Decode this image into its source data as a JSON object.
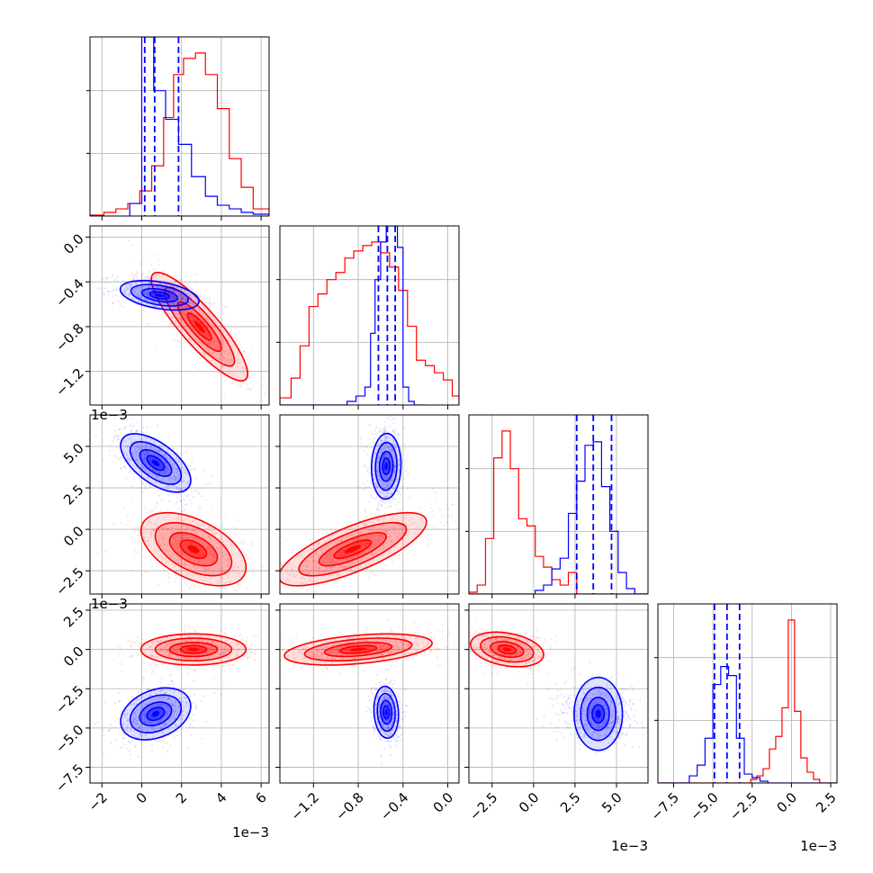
{
  "chart_data": {
    "type": "corner",
    "grid": true,
    "axis_offset_label": "1e−3",
    "series": [
      {
        "name": "",
        "color": "#ff0000"
      },
      {
        "name": "",
        "color": "#0000ff"
      }
    ],
    "parameters": [
      {
        "range": [
          -2.6,
          6.4
        ],
        "ticks": [
          -2,
          0,
          2,
          4,
          6
        ],
        "tick_labels": [
          "−2",
          "0",
          "2",
          "4",
          "6"
        ]
      },
      {
        "range": [
          -1.5,
          0.1
        ],
        "ticks": [
          -1.2,
          -0.8,
          -0.4,
          0.0
        ],
        "tick_labels": [
          "−1.2",
          "−0.8",
          "−0.4",
          "0.0"
        ]
      },
      {
        "range": [
          -3.9,
          6.9
        ],
        "ticks": [
          -2.5,
          0.0,
          2.5,
          5.0
        ],
        "tick_labels": [
          "−2.5",
          "0.0",
          "2.5",
          "5.0"
        ]
      },
      {
        "range": [
          -8.5,
          2.9
        ],
        "ticks": [
          -7.5,
          -5.0,
          -2.5,
          0.0,
          2.5
        ],
        "tick_labels": [
          "−7.5",
          "−5.0",
          "−2.5",
          "0.0",
          "2.5"
        ]
      }
    ],
    "diagonal_histograms": [
      {
        "blue_quantiles": [
          0.15,
          0.65,
          1.85
        ],
        "blue_edges": [
          -0.6,
          0.0,
          0.6,
          1.2,
          1.85,
          2.5,
          3.2,
          3.8,
          4.4,
          5.0,
          5.6,
          6.4
        ],
        "blue_counts": [
          0.07,
          1.0,
          0.7,
          0.54,
          0.4,
          0.22,
          0.11,
          0.06,
          0.04,
          0.02,
          0.01
        ],
        "red_edges": [
          -2.6,
          -1.9,
          -1.3,
          -0.7,
          -0.1,
          0.5,
          1.1,
          1.6,
          2.1,
          2.7,
          3.2,
          3.8,
          4.4,
          5.0,
          5.6,
          6.4
        ],
        "red_counts": [
          0.005,
          0.02,
          0.04,
          0.07,
          0.14,
          0.28,
          0.55,
          0.79,
          0.88,
          0.91,
          0.79,
          0.6,
          0.32,
          0.16,
          0.04
        ]
      },
      {
        "blue_quantiles": [
          -0.62,
          -0.54,
          -0.47
        ],
        "blue_edges": [
          -1.5,
          -0.9,
          -0.82,
          -0.74,
          -0.69,
          -0.65,
          -0.6,
          -0.55,
          -0.5,
          -0.45,
          -0.4,
          -0.35,
          -0.3,
          -0.2
        ],
        "blue_counts": [
          0.0,
          0.02,
          0.05,
          0.1,
          0.4,
          0.7,
          0.91,
          1.0,
          1.0,
          0.88,
          0.1,
          0.02,
          0.0
        ],
        "red_edges": [
          -1.5,
          -1.4,
          -1.32,
          -1.24,
          -1.16,
          -1.08,
          -1.0,
          -0.92,
          -0.84,
          -0.76,
          -0.68,
          -0.6,
          -0.52,
          -0.44,
          -0.36,
          -0.28,
          -0.2,
          -0.12,
          -0.04,
          0.04,
          0.1
        ],
        "red_counts": [
          0.04,
          0.15,
          0.33,
          0.55,
          0.62,
          0.7,
          0.74,
          0.82,
          0.86,
          0.89,
          0.91,
          0.85,
          0.77,
          0.64,
          0.44,
          0.25,
          0.22,
          0.18,
          0.14,
          0.05
        ]
      },
      {
        "blue_quantiles": [
          2.6,
          3.6,
          4.7
        ],
        "blue_edges": [
          -3.9,
          0.1,
          0.6,
          1.1,
          1.6,
          2.1,
          2.6,
          3.1,
          3.6,
          4.1,
          4.6,
          5.1,
          5.6,
          6.1,
          6.9
        ],
        "blue_counts": [
          0.0,
          0.02,
          0.05,
          0.14,
          0.2,
          0.45,
          0.63,
          0.83,
          0.85,
          0.6,
          0.35,
          0.12,
          0.03,
          0.0
        ],
        "red_edges": [
          -3.9,
          -3.4,
          -2.9,
          -2.4,
          -1.9,
          -1.4,
          -0.9,
          -0.4,
          0.1,
          0.6,
          1.1,
          1.6,
          2.1,
          2.6,
          6.9
        ],
        "red_counts": [
          0.01,
          0.05,
          0.31,
          0.76,
          0.91,
          0.7,
          0.42,
          0.38,
          0.21,
          0.15,
          0.08,
          0.05,
          0.12,
          0.0
        ]
      },
      {
        "blue_quantiles": [
          -4.9,
          -4.1,
          -3.3
        ],
        "blue_edges": [
          -8.5,
          -6.5,
          -6.0,
          -5.5,
          -5.0,
          -4.5,
          -4.0,
          -3.5,
          -3.0,
          -2.5,
          -2.0,
          -1.5,
          2.9
        ],
        "blue_counts": [
          0.0,
          0.04,
          0.1,
          0.25,
          0.55,
          0.65,
          0.6,
          0.25,
          0.05,
          0.03,
          0.01,
          0.0
        ],
        "red_edges": [
          -8.5,
          -2.6,
          -2.2,
          -1.8,
          -1.4,
          -1.0,
          -0.6,
          -0.2,
          0.2,
          0.6,
          1.0,
          1.4,
          1.8,
          2.9
        ],
        "red_counts": [
          0.0,
          0.02,
          0.04,
          0.08,
          0.19,
          0.26,
          0.42,
          0.91,
          0.4,
          0.14,
          0.06,
          0.02,
          0.0
        ]
      }
    ],
    "scatter_panels": [
      {
        "row": 1,
        "col": 0,
        "red": {
          "mean": [
            2.9,
            -0.8
          ],
          "sd": [
            1.1,
            0.22
          ],
          "corr": -0.87
        },
        "blue": {
          "mean": [
            0.9,
            -0.52
          ],
          "sd": [
            0.9,
            0.06
          ],
          "corr": -0.4
        }
      },
      {
        "row": 2,
        "col": 0,
        "red": {
          "mean": [
            2.6,
            -1.2
          ],
          "sd": [
            1.2,
            1.0
          ],
          "corr": -0.5
        },
        "blue": {
          "mean": [
            0.7,
            4.0
          ],
          "sd": [
            0.8,
            0.8
          ],
          "corr": -0.6
        }
      },
      {
        "row": 2,
        "col": 1,
        "red": {
          "mean": [
            -0.85,
            -1.2
          ],
          "sd": [
            0.3,
            1.0
          ],
          "corr": 0.75
        },
        "blue": {
          "mean": [
            -0.55,
            3.8
          ],
          "sd": [
            0.06,
            0.9
          ],
          "corr": 0.05
        }
      },
      {
        "row": 3,
        "col": 0,
        "red": {
          "mean": [
            2.6,
            0.0
          ],
          "sd": [
            1.2,
            0.45
          ],
          "corr": 0.0
        },
        "blue": {
          "mean": [
            0.7,
            -4.1
          ],
          "sd": [
            0.8,
            0.75
          ],
          "corr": 0.3
        }
      },
      {
        "row": 3,
        "col": 1,
        "red": {
          "mean": [
            -0.8,
            0.0
          ],
          "sd": [
            0.3,
            0.45
          ],
          "corr": 0.4
        },
        "blue": {
          "mean": [
            -0.55,
            -4.0
          ],
          "sd": [
            0.05,
            0.75
          ],
          "corr": -0.1
        }
      },
      {
        "row": 3,
        "col": 2,
        "red": {
          "mean": [
            -1.6,
            0.0
          ],
          "sd": [
            1.0,
            0.5
          ],
          "corr": -0.3
        },
        "blue": {
          "mean": [
            3.9,
            -4.1
          ],
          "sd": [
            1.0,
            0.7
          ],
          "corr": 0.0
        }
      }
    ]
  }
}
